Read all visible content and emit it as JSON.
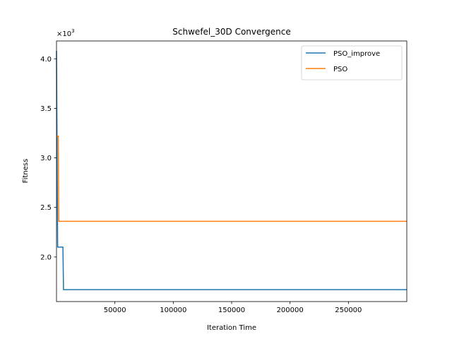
{
  "chart_data": {
    "type": "line",
    "title": "Schwefel_30D Convergence",
    "xlabel": "Iteration Time",
    "ylabel": "Fitness",
    "y_multiplier": "×10",
    "y_multiplier_exp": "3",
    "xlim": [
      1,
      300000
    ],
    "ylim": [
      1.55,
      4.18
    ],
    "x_ticks": [
      50000,
      100000,
      150000,
      200000,
      250000
    ],
    "x_tick_labels": [
      "50000",
      "100000",
      "150000",
      "200000",
      "250000"
    ],
    "y_ticks": [
      2.0,
      2.5,
      3.0,
      3.5,
      4.0
    ],
    "y_tick_labels": [
      "2.0",
      "2.5",
      "3.0",
      "3.5",
      "4.0"
    ],
    "grid": false,
    "legend_position": "top-right",
    "series": [
      {
        "name": "PSO_improve",
        "color": "#1f77b4",
        "points": [
          [
            1,
            4.08
          ],
          [
            500,
            3.0
          ],
          [
            1000,
            2.1
          ],
          [
            5500,
            2.1
          ],
          [
            6000,
            1.67
          ],
          [
            300000,
            1.67
          ]
        ]
      },
      {
        "name": "PSO",
        "color": "#ff7f0e",
        "points": [
          [
            1,
            3.22
          ],
          [
            1500,
            3.22
          ],
          [
            2000,
            2.36
          ],
          [
            300000,
            2.36
          ]
        ]
      }
    ]
  }
}
